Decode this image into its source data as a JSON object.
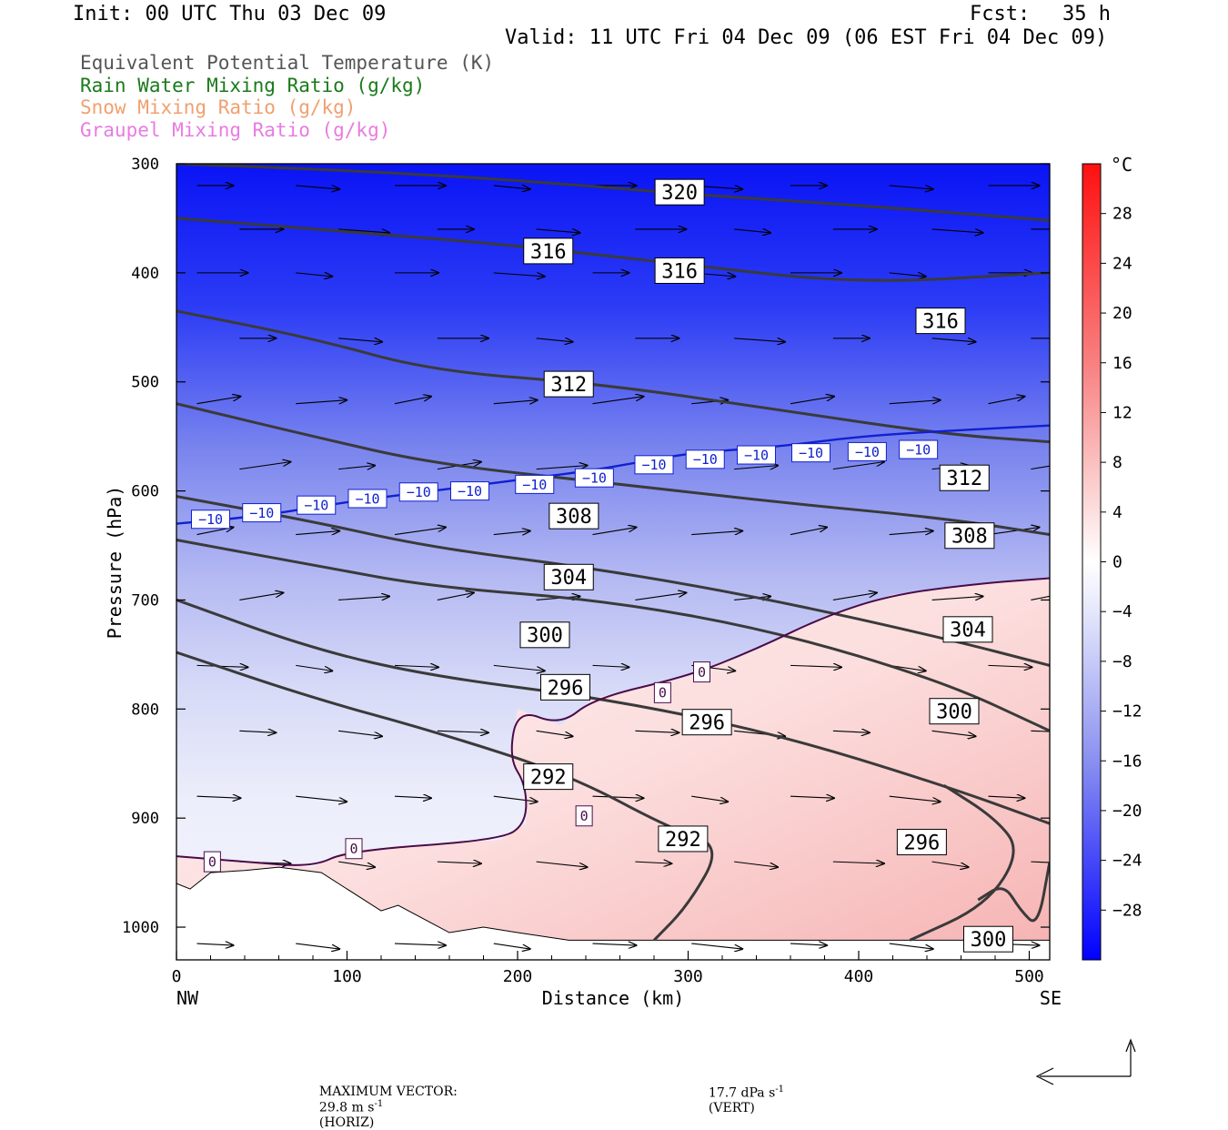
{
  "header": {
    "init": "Init: 00 UTC Thu 03 Dec 09",
    "fcst_label": "Fcst:",
    "fcst_value": "35 h",
    "valid": "Valid: 11 UTC Fri 04 Dec 09 (06 EST Fri 04 Dec 09)"
  },
  "legend": [
    {
      "text": "Equivalent Potential Temperature (K)",
      "color": "#555555"
    },
    {
      "text": "Rain Water Mixing Ratio (g/kg)",
      "color": "#1a7a1a"
    },
    {
      "text": "Snow Mixing Ratio (g/kg)",
      "color": "#f0a070"
    },
    {
      "text": "Graupel Mixing Ratio (g/kg)",
      "color": "#e87ce0"
    }
  ],
  "footer": {
    "max_vector_label": "MAXIMUM VECTOR:",
    "horiz_value": "29.8 m s",
    "horiz_exp": "-1",
    "horiz_label": "(HORIZ)",
    "vert_value": "17.7 dPa s",
    "vert_exp": "-1",
    "vert_label": "(VERT)"
  },
  "chart_data": {
    "type": "cross-section",
    "xlabel": "Distance (km)",
    "ylabel": "Pressure (hPa)",
    "xlim": [
      0,
      512
    ],
    "ylim": [
      300,
      1030
    ],
    "x_ticks": [
      0,
      100,
      200,
      300,
      400,
      500
    ],
    "y_ticks": [
      300,
      400,
      500,
      600,
      700,
      800,
      900,
      1000
    ],
    "x_end_labels": {
      "left": "NW",
      "right": "SE"
    },
    "colorbar": {
      "unit": "°C",
      "tick_labels": [
        "28",
        "24",
        "20",
        "16",
        "12",
        "8",
        "4",
        "0",
        "−4",
        "−8",
        "−12",
        "−16",
        "−20",
        "−24",
        "−28"
      ],
      "range": [
        -32,
        32
      ],
      "colors_warm": "#ff1a1a",
      "colors_cold": "#0000ff"
    },
    "theta_e_contours": [
      {
        "level": 320,
        "points": [
          [
            0,
            300
          ],
          [
            100,
            306
          ],
          [
            200,
            315
          ],
          [
            300,
            328
          ],
          [
            400,
            338
          ],
          [
            512,
            352
          ]
        ]
      },
      {
        "level": 316,
        "points": [
          [
            0,
            350
          ],
          [
            100,
            362
          ],
          [
            200,
            375
          ],
          [
            300,
            393
          ],
          [
            400,
            410
          ],
          [
            512,
            400
          ]
        ]
      },
      {
        "level": 316,
        "points": [
          [
            0,
            435
          ],
          [
            80,
            460
          ],
          [
            150,
            490
          ],
          [
            250,
            502
          ],
          [
            350,
            525
          ],
          [
            450,
            548
          ],
          [
            512,
            555
          ]
        ]
      },
      {
        "level": 312,
        "points": [
          [
            0,
            520
          ],
          [
            80,
            550
          ],
          [
            150,
            575
          ],
          [
            250,
            592
          ],
          [
            350,
            610
          ],
          [
            450,
            625
          ],
          [
            512,
            640
          ]
        ]
      },
      {
        "level": 308,
        "points": [
          [
            0,
            605
          ],
          [
            80,
            628
          ],
          [
            150,
            652
          ],
          [
            250,
            672
          ],
          [
            350,
            700
          ],
          [
            450,
            735
          ],
          [
            512,
            760
          ]
        ]
      },
      {
        "level": 304,
        "points": [
          [
            0,
            645
          ],
          [
            80,
            668
          ],
          [
            150,
            688
          ],
          [
            250,
            700
          ],
          [
            350,
            728
          ],
          [
            450,
            775
          ],
          [
            512,
            820
          ]
        ]
      },
      {
        "level": 300,
        "points": [
          [
            0,
            700
          ],
          [
            80,
            745
          ],
          [
            150,
            770
          ],
          [
            250,
            790
          ],
          [
            350,
            822
          ],
          [
            450,
            870
          ],
          [
            512,
            905
          ]
        ]
      },
      {
        "level": 296,
        "points": [
          [
            0,
            748
          ],
          [
            80,
            790
          ],
          [
            150,
            820
          ],
          [
            230,
            860
          ],
          [
            290,
            910
          ],
          [
            320,
            925
          ],
          [
            300,
            980
          ],
          [
            280,
            1012
          ]
        ]
      },
      {
        "level": 296,
        "points": [
          [
            450,
            870
          ],
          [
            480,
            900
          ],
          [
            495,
            930
          ],
          [
            475,
            980
          ],
          [
            430,
            1012
          ]
        ]
      },
      {
        "level": 300,
        "points": [
          [
            470,
            975
          ],
          [
            485,
            960
          ],
          [
            495,
            985
          ],
          [
            505,
            1000
          ],
          [
            512,
            940
          ]
        ]
      }
    ],
    "theta_e_labels": [
      {
        "text": "320",
        "x": 295,
        "p": 326
      },
      {
        "text": "316",
        "x": 218,
        "p": 380
      },
      {
        "text": "316",
        "x": 295,
        "p": 398
      },
      {
        "text": "316",
        "x": 448,
        "p": 444
      },
      {
        "text": "312",
        "x": 230,
        "p": 502
      },
      {
        "text": "312",
        "x": 462,
        "p": 588
      },
      {
        "text": "308",
        "x": 233,
        "p": 623
      },
      {
        "text": "308",
        "x": 465,
        "p": 641
      },
      {
        "text": "304",
        "x": 230,
        "p": 679
      },
      {
        "text": "304",
        "x": 464,
        "p": 727
      },
      {
        "text": "300",
        "x": 216,
        "p": 732
      },
      {
        "text": "300",
        "x": 456,
        "p": 802
      },
      {
        "text": "296",
        "x": 228,
        "p": 780
      },
      {
        "text": "296",
        "x": 311,
        "p": 812
      },
      {
        "text": "296",
        "x": 437,
        "p": 922
      },
      {
        "text": "292",
        "x": 218,
        "p": 862
      },
      {
        "text": "292",
        "x": 297,
        "p": 919
      },
      {
        "text": "300",
        "x": 476,
        "p": 1011
      }
    ],
    "isotherm_minus10": {
      "level": -10,
      "points": [
        [
          0,
          630
        ],
        [
          50,
          623
        ],
        [
          100,
          610
        ],
        [
          150,
          600
        ],
        [
          200,
          590
        ],
        [
          250,
          580
        ],
        [
          300,
          565
        ],
        [
          350,
          560
        ],
        [
          400,
          550
        ],
        [
          450,
          545
        ],
        [
          512,
          540
        ]
      ],
      "labels": [
        [
          20,
          626
        ],
        [
          50,
          620
        ],
        [
          82,
          613
        ],
        [
          112,
          607
        ],
        [
          142,
          601
        ],
        [
          172,
          600
        ],
        [
          210,
          594
        ],
        [
          245,
          588
        ],
        [
          280,
          576
        ],
        [
          310,
          571
        ],
        [
          340,
          567
        ],
        [
          372,
          565
        ],
        [
          405,
          564
        ],
        [
          435,
          562
        ]
      ]
    },
    "isotherm_zero": {
      "level": 0,
      "points": [
        [
          0,
          935
        ],
        [
          40,
          940
        ],
        [
          80,
          945
        ],
        [
          100,
          930
        ],
        [
          190,
          920
        ],
        [
          205,
          905
        ],
        [
          205,
          870
        ],
        [
          195,
          845
        ],
        [
          200,
          800
        ],
        [
          225,
          815
        ],
        [
          245,
          790
        ],
        [
          300,
          770
        ],
        [
          340,
          745
        ],
        [
          380,
          715
        ],
        [
          420,
          695
        ],
        [
          470,
          685
        ],
        [
          512,
          680
        ]
      ],
      "labels": [
        [
          21,
          940
        ],
        [
          104,
          928
        ],
        [
          239,
          898
        ],
        [
          285,
          785
        ],
        [
          308,
          766
        ]
      ]
    },
    "wind_vector_rows_hpa": [
      320,
      360,
      400,
      460,
      520,
      580,
      640,
      700,
      760,
      820,
      880,
      940,
      1015
    ]
  }
}
